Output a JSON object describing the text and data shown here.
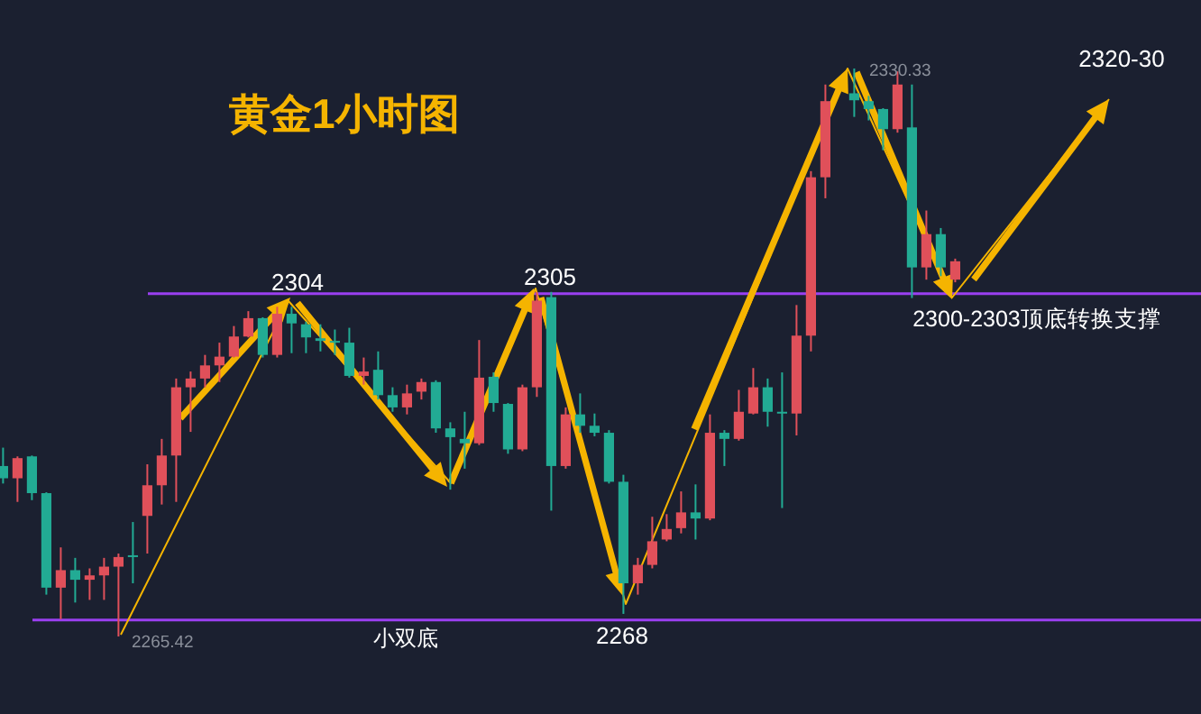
{
  "chart_data": {
    "type": "candlestick",
    "title": "黄金1小时图",
    "categories": [
      null,
      null,
      null,
      null,
      null,
      null,
      null,
      null,
      null,
      null,
      null,
      null,
      null,
      null,
      null,
      null,
      null,
      null,
      null,
      null,
      null,
      null,
      null,
      null,
      null,
      null,
      null,
      null,
      null,
      null,
      null,
      null,
      null,
      null,
      null,
      null,
      null,
      null,
      null,
      null,
      null,
      null,
      null,
      null,
      null,
      null,
      null,
      null,
      null,
      null,
      null,
      null,
      null,
      null,
      null,
      null,
      null,
      null,
      null,
      null,
      null,
      null,
      null,
      null,
      null,
      null,
      null
    ],
    "ohlc": [
      [
        2284.9,
        2287.0,
        2282.9,
        2283.5
      ],
      [
        2283.5,
        2286.0,
        2280.8,
        2285.8
      ],
      [
        2286.0,
        2286.1,
        2281.0,
        2281.8
      ],
      [
        2281.8,
        2281.9,
        2270.2,
        2271.0
      ],
      [
        2271.0,
        2275.6,
        2267.4,
        2273.0
      ],
      [
        2273.0,
        2274.4,
        2269.3,
        2271.9
      ],
      [
        2271.9,
        2273.2,
        2269.6,
        2272.4
      ],
      [
        2272.4,
        2274.4,
        2269.6,
        2273.4
      ],
      [
        2273.4,
        2274.9,
        2265.42,
        2274.5
      ],
      [
        2274.7,
        2278.5,
        2271.5,
        2274.5
      ],
      [
        2279.2,
        2285.1,
        2274.9,
        2282.7
      ],
      [
        2282.7,
        2288.0,
        2280.5,
        2286.1
      ],
      [
        2286.1,
        2294.9,
        2280.8,
        2293.9
      ],
      [
        2293.9,
        2295.7,
        2288.8,
        2294.9
      ],
      [
        2294.9,
        2297.6,
        2293.9,
        2296.4
      ],
      [
        2296.4,
        2299.0,
        2294.5,
        2297.4
      ],
      [
        2297.4,
        2300.9,
        2297.3,
        2299.7
      ],
      [
        2299.7,
        2302.6,
        2299.6,
        2301.8
      ],
      [
        2301.8,
        2301.9,
        2297.3,
        2297.6
      ],
      [
        2297.6,
        2303.1,
        2297.3,
        2302.3
      ],
      [
        2302.3,
        2303.1,
        2297.8,
        2301.2
      ],
      [
        2301.1,
        2301.4,
        2297.8,
        2299.6
      ],
      [
        2299.5,
        2301.1,
        2298.0,
        2299.2
      ],
      [
        2299.2,
        2300.5,
        2297.6,
        2299.0
      ],
      [
        2299.0,
        2300.7,
        2295.0,
        2295.2
      ],
      [
        2295.2,
        2297.3,
        2294.2,
        2295.7
      ],
      [
        2295.9,
        2298.0,
        2292.5,
        2293.0
      ],
      [
        2293.0,
        2293.9,
        2291.1,
        2291.6
      ],
      [
        2291.6,
        2294.2,
        2290.8,
        2293.2
      ],
      [
        2293.4,
        2294.9,
        2292.5,
        2294.5
      ],
      [
        2294.5,
        2294.7,
        2288.7,
        2289.2
      ],
      [
        2289.2,
        2289.9,
        2282.2,
        2288.2
      ],
      [
        2288.0,
        2291.1,
        2284.6,
        2287.5
      ],
      [
        2287.5,
        2299.3,
        2287.3,
        2295.0
      ],
      [
        2295.1,
        2295.6,
        2291.1,
        2292.1
      ],
      [
        2292.0,
        2292.1,
        2286.3,
        2286.8
      ],
      [
        2286.8,
        2294.2,
        2286.6,
        2293.9
      ],
      [
        2293.9,
        2304.8,
        2292.8,
        2303.8
      ],
      [
        2304.2,
        2304.8,
        2279.8,
        2284.9
      ],
      [
        2284.9,
        2291.6,
        2284.6,
        2290.8
      ],
      [
        2290.8,
        2293.2,
        2288.7,
        2289.5
      ],
      [
        2289.5,
        2290.9,
        2288.3,
        2288.7
      ],
      [
        2288.7,
        2289.0,
        2282.9,
        2283.1
      ],
      [
        2283.1,
        2283.9,
        2268.0,
        2271.5
      ],
      [
        2271.5,
        2274.4,
        2270.2,
        2273.6
      ],
      [
        2273.6,
        2279.1,
        2273.2,
        2276.3
      ],
      [
        2276.5,
        2279.4,
        2276.3,
        2277.7
      ],
      [
        2277.8,
        2282.0,
        2277.2,
        2279.6
      ],
      [
        2279.6,
        2282.8,
        2276.5,
        2278.9
      ],
      [
        2278.9,
        2290.8,
        2278.7,
        2288.7
      ],
      [
        2288.7,
        2289.0,
        2284.9,
        2288.0
      ],
      [
        2288.0,
        2293.6,
        2287.8,
        2291.1
      ],
      [
        2290.9,
        2296.1,
        2290.8,
        2293.9
      ],
      [
        2293.9,
        2294.9,
        2289.4,
        2291.1
      ],
      [
        2291.1,
        2295.6,
        2280.1,
        2290.9
      ],
      [
        2290.9,
        2303.3,
        2288.4,
        2299.8
      ],
      [
        2299.8,
        2318.6,
        2298.0,
        2317.9
      ],
      [
        2317.9,
        2328.5,
        2315.5,
        2326.6
      ],
      null,
      [
        2327.5,
        2330.33,
        2324.8,
        2326.7
      ],
      [
        2326.6,
        2327.2,
        2324.4,
        2325.7
      ],
      [
        2325.7,
        2325.8,
        2321.0,
        2323.4
      ],
      [
        2323.4,
        2330.0,
        2323.0,
        2328.5
      ],
      [
        2323.6,
        2328.5,
        2304.1,
        2307.6
      ],
      [
        2307.6,
        2314.1,
        2306.2,
        2311.4
      ],
      [
        2311.4,
        2312.1,
        2306.6,
        2307.6
      ],
      [
        2306.2,
        2308.6,
        2305.9,
        2308.3
      ]
    ],
    "colors": [
      "#22ab94",
      "#e0505a",
      "#22ab94",
      "#22ab94",
      "#e0505a",
      "#22ab94",
      "#e0505a",
      "#e0505a",
      "#e0505a",
      "#22ab94",
      "#e0505a",
      "#e0505a",
      "#e0505a",
      "#e0505a",
      "#e0505a",
      "#e0505a",
      "#e0505a",
      "#e0505a",
      "#22ab94",
      "#e0505a",
      "#22ab94",
      "#22ab94",
      "#22ab94",
      "#22ab94",
      "#22ab94",
      "#e0505a",
      "#22ab94",
      "#22ab94",
      "#e0505a",
      "#e0505a",
      "#22ab94",
      "#22ab94",
      "#22ab94",
      "#e0505a",
      "#22ab94",
      "#22ab94",
      "#e0505a",
      "#e0505a",
      "#22ab94",
      "#e0505a",
      "#22ab94",
      "#22ab94",
      "#22ab94",
      "#22ab94",
      "#e0505a",
      "#e0505a",
      "#e0505a",
      "#e0505a",
      "#22ab94",
      "#e0505a",
      "#22ab94",
      "#e0505a",
      "#e0505a",
      "#22ab94",
      "#22ab94",
      "#e0505a",
      "#e0505a",
      "#e0505a",
      null,
      "#22ab94",
      "#22ab94",
      "#22ab94",
      "#e0505a",
      "#22ab94",
      "#e0505a",
      "#22ab94",
      "#e0505a"
    ],
    "ref_lines": [
      {
        "axis": "y",
        "value": 2304.6,
        "color": "#9a3ff0"
      },
      {
        "axis": "y",
        "value": 2267.3,
        "color": "#9a3ff0"
      }
    ],
    "annotations": [
      "2304",
      "2305",
      "2268",
      "小双底",
      "2320-30",
      "2300-2303顶底转换支撑",
      "2265.42",
      "2330.33"
    ]
  }
}
